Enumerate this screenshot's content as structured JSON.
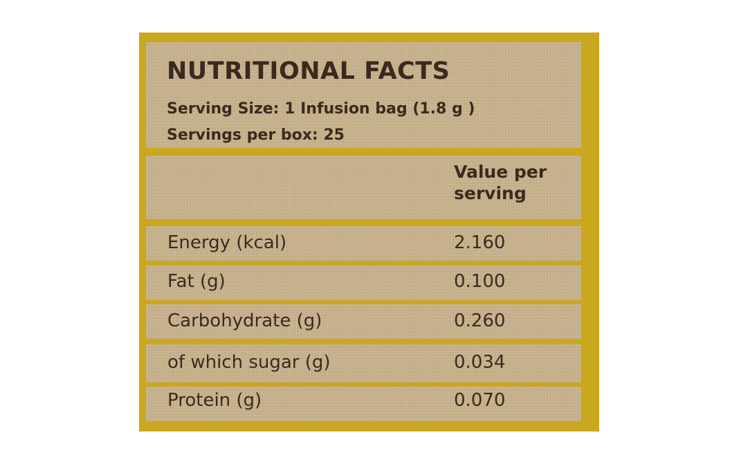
{
  "panel": {
    "title": "NUTRITIONAL FACTS",
    "serving_size": "Serving Size: 1 Infusion bag (1.8 g )",
    "servings_per_box": "Servings per box: 25"
  },
  "table": {
    "column_header_line1": "Value per",
    "column_header_line2": "serving",
    "rows": [
      {
        "label": "Energy (kcal)",
        "value": "2.160"
      },
      {
        "label": "Fat (g)",
        "value": "0.100"
      },
      {
        "label": "Carbohydrate (g)",
        "value": "0.260"
      },
      {
        "label": "of which sugar (g)",
        "value": "0.034"
      },
      {
        "label": "Protein (g)",
        "value": "0.070"
      }
    ]
  },
  "colors": {
    "frame": "#c9a81f",
    "cell": "#c5b08b",
    "text": "#3a2a1e"
  }
}
